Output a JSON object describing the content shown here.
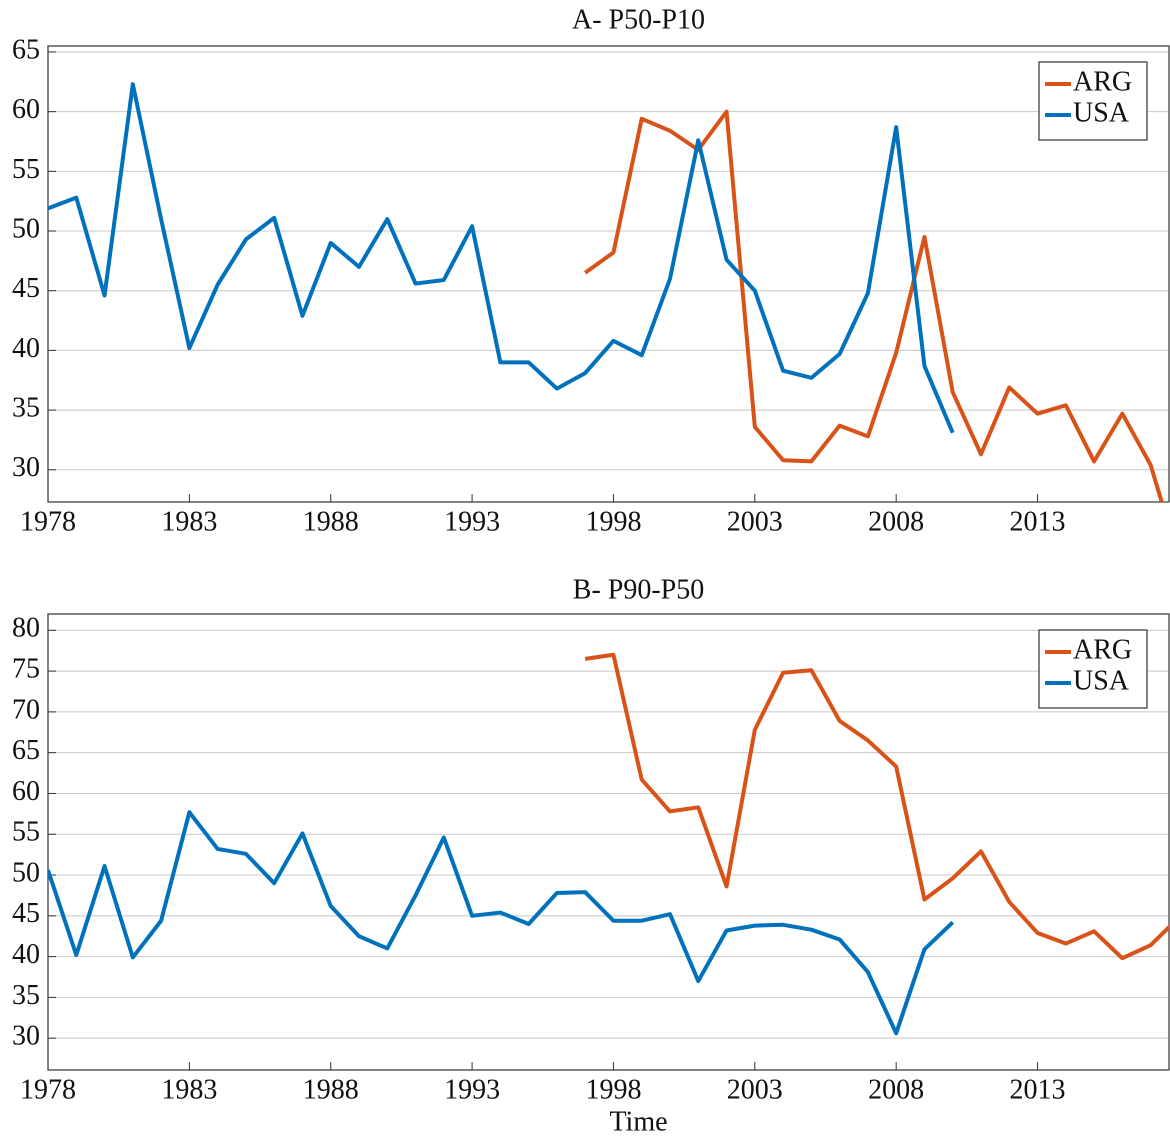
{
  "chart_data": [
    {
      "type": "line",
      "title": "A- P50-P10",
      "x": [
        1978,
        1979,
        1980,
        1981,
        1982,
        1983,
        1984,
        1985,
        1986,
        1987,
        1988,
        1989,
        1990,
        1991,
        1992,
        1993,
        1994,
        1995,
        1996,
        1997,
        1998,
        1999,
        2000,
        2001,
        2002,
        2003,
        2004,
        2005,
        2006,
        2007,
        2008,
        2009,
        2010,
        2011,
        2012,
        2013,
        2014,
        2015,
        2016,
        2017,
        2018
      ],
      "series": [
        {
          "name": "ARG",
          "color": "#d95319",
          "values": [
            null,
            null,
            null,
            null,
            null,
            null,
            null,
            null,
            null,
            null,
            null,
            null,
            null,
            null,
            null,
            null,
            null,
            null,
            null,
            46.5,
            48.2,
            59.4,
            58.4,
            56.8,
            60,
            33.6,
            30.8,
            30.7,
            33.7,
            32.8,
            39.8,
            49.5,
            36.5,
            31.3,
            36.9,
            34.7,
            35.4,
            30.7,
            34.7,
            30.4,
            22.5
          ]
        },
        {
          "name": "USA",
          "color": "#0072bd",
          "values": [
            51.9,
            52.8,
            44.6,
            62.3,
            51,
            40.2,
            45.5,
            49.3,
            51.1,
            42.9,
            49,
            47,
            51,
            45.6,
            45.9,
            50.4,
            39,
            39,
            36.8,
            38.1,
            40.8,
            39.6,
            46,
            57.6,
            47.6,
            45,
            38.3,
            37.7,
            39.7,
            44.8,
            58.7,
            38.7,
            33.1,
            null,
            null,
            null,
            null,
            null,
            null,
            null,
            null
          ]
        }
      ],
      "xlim": [
        1978,
        2017.65
      ],
      "xticks": [
        1978,
        1983,
        1988,
        1993,
        1998,
        2003,
        2008,
        2013
      ],
      "ylim": [
        27.3,
        65.5
      ],
      "yticks": [
        30,
        35,
        40,
        45,
        50,
        55,
        60,
        65
      ],
      "grid": true,
      "legend": "top-right"
    },
    {
      "type": "line",
      "title": "B- P90-P50",
      "xlabel": "Time",
      "x": [
        1978,
        1979,
        1980,
        1981,
        1982,
        1983,
        1984,
        1985,
        1986,
        1987,
        1988,
        1989,
        1990,
        1991,
        1992,
        1993,
        1994,
        1995,
        1996,
        1997,
        1998,
        1999,
        2000,
        2001,
        2002,
        2003,
        2004,
        2005,
        2006,
        2007,
        2008,
        2009,
        2010,
        2011,
        2012,
        2013,
        2014,
        2015,
        2016,
        2017,
        2018
      ],
      "series": [
        {
          "name": "ARG",
          "color": "#d95319",
          "values": [
            null,
            null,
            null,
            null,
            null,
            null,
            null,
            null,
            null,
            null,
            null,
            null,
            null,
            null,
            null,
            null,
            null,
            null,
            null,
            76.5,
            77,
            61.7,
            57.8,
            58.3,
            48.6,
            67.8,
            74.8,
            75.1,
            68.9,
            66.5,
            63.3,
            47,
            49.6,
            52.9,
            46.7,
            42.9,
            41.6,
            43.1,
            39.8,
            41.4,
            44.8
          ]
        },
        {
          "name": "USA",
          "color": "#0072bd",
          "values": [
            50.6,
            40.2,
            51.1,
            39.9,
            44.4,
            57.7,
            53.2,
            52.6,
            49,
            55.1,
            46.2,
            42.5,
            41,
            47.5,
            54.6,
            45,
            45.4,
            44,
            47.8,
            47.9,
            44.4,
            44.4,
            45.2,
            37,
            43.2,
            43.8,
            43.9,
            43.3,
            42.1,
            38.1,
            30.6,
            40.9,
            44.2,
            null,
            null,
            null,
            null,
            null,
            null,
            null,
            null
          ]
        }
      ],
      "xlim": [
        1978,
        2017.65
      ],
      "xticks": [
        1978,
        1983,
        1988,
        1993,
        1998,
        2003,
        2008,
        2013
      ],
      "ylim": [
        26.1,
        82
      ],
      "yticks": [
        30,
        35,
        40,
        45,
        50,
        55,
        60,
        65,
        70,
        75,
        80
      ],
      "grid": true,
      "legend": "top-right"
    }
  ]
}
